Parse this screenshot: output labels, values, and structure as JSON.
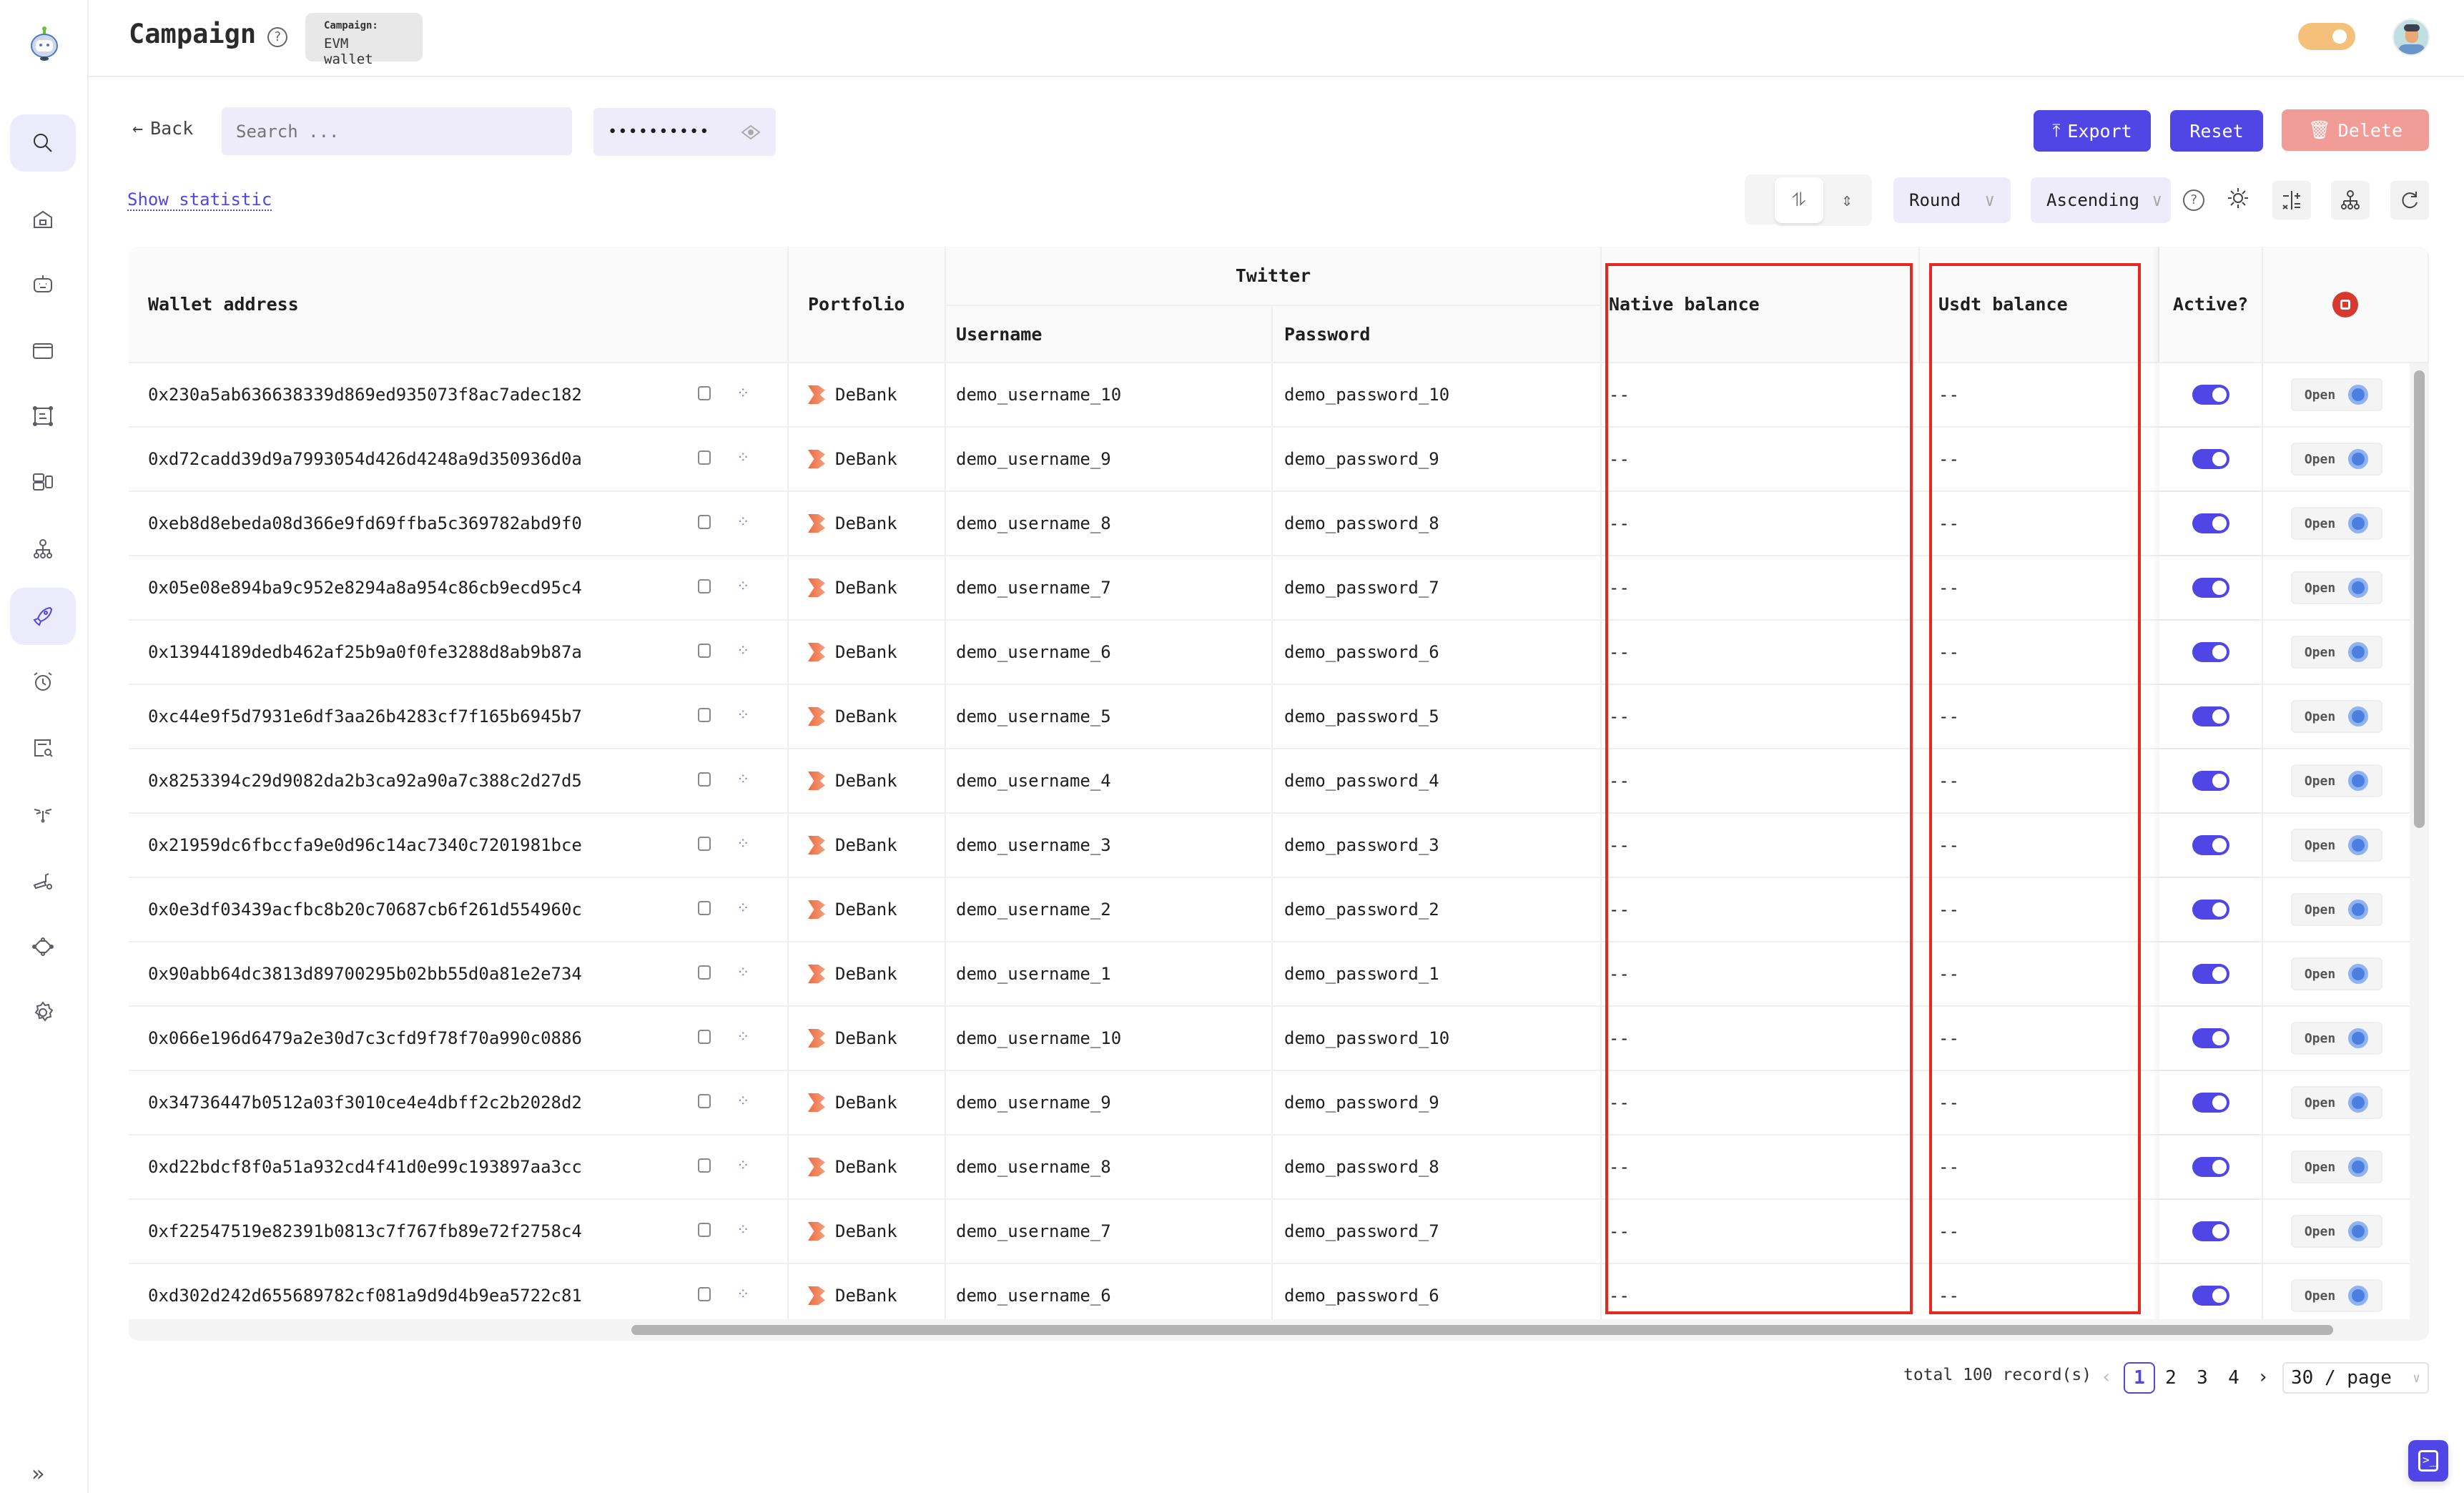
{
  "header": {
    "title": "Campaign",
    "badge_label": "Campaign:",
    "badge_value": "EVM wallet"
  },
  "toolbar": {
    "back_label": "Back",
    "search_placeholder": "Search ...",
    "password_value": "••••••••••",
    "export_label": "Export",
    "reset_label": "Reset",
    "delete_label": "Delete",
    "show_statistic": "Show statistic",
    "round_select": "Round",
    "order_select": "Ascending"
  },
  "colors": {
    "primary": "#4f46e5",
    "danger_disabled": "#f29c98",
    "highlight": "#e8281e",
    "theme_toggle": "#f5c07a"
  },
  "sidebar": {
    "items": [
      "search-icon",
      "home-icon",
      "robot-icon",
      "wallet-icon",
      "scan-icon",
      "layout-icon",
      "network-icon",
      "rocket-icon",
      "alarm-icon",
      "search-doc-icon",
      "signal-icon",
      "tool-icon",
      "nodes-icon",
      "gear-icon"
    ],
    "active": "rocket-icon"
  },
  "table": {
    "headers": {
      "wallet": "Wallet address",
      "portfolio": "Portfolio",
      "twitter": "Twitter",
      "username": "Username",
      "password": "Password",
      "native": "Native balance",
      "usdt": "Usdt balance",
      "active": "Active?"
    },
    "open_label": "Open",
    "rows": [
      {
        "address": "0x230a5ab636638339d869ed935073f8ac7adec182",
        "portfolio": "DeBank",
        "username": "demo_username_10",
        "password": "demo_password_10",
        "native": "--",
        "usdt": "--",
        "active": true
      },
      {
        "address": "0xd72cadd39d9a7993054d426d4248a9d350936d0a",
        "portfolio": "DeBank",
        "username": "demo_username_9",
        "password": "demo_password_9",
        "native": "--",
        "usdt": "--",
        "active": true
      },
      {
        "address": "0xeb8d8ebeda08d366e9fd69ffba5c369782abd9f0",
        "portfolio": "DeBank",
        "username": "demo_username_8",
        "password": "demo_password_8",
        "native": "--",
        "usdt": "--",
        "active": true
      },
      {
        "address": "0x05e08e894ba9c952e8294a8a954c86cb9ecd95c4",
        "portfolio": "DeBank",
        "username": "demo_username_7",
        "password": "demo_password_7",
        "native": "--",
        "usdt": "--",
        "active": true
      },
      {
        "address": "0x13944189dedb462af25b9a0f0fe3288d8ab9b87a",
        "portfolio": "DeBank",
        "username": "demo_username_6",
        "password": "demo_password_6",
        "native": "--",
        "usdt": "--",
        "active": true
      },
      {
        "address": "0xc44e9f5d7931e6df3aa26b4283cf7f165b6945b7",
        "portfolio": "DeBank",
        "username": "demo_username_5",
        "password": "demo_password_5",
        "native": "--",
        "usdt": "--",
        "active": true
      },
      {
        "address": "0x8253394c29d9082da2b3ca92a90a7c388c2d27d5",
        "portfolio": "DeBank",
        "username": "demo_username_4",
        "password": "demo_password_4",
        "native": "--",
        "usdt": "--",
        "active": true
      },
      {
        "address": "0x21959dc6fbccfa9e0d96c14ac7340c7201981bce",
        "portfolio": "DeBank",
        "username": "demo_username_3",
        "password": "demo_password_3",
        "native": "--",
        "usdt": "--",
        "active": true
      },
      {
        "address": "0x0e3df03439acfbc8b20c70687cb6f261d554960c",
        "portfolio": "DeBank",
        "username": "demo_username_2",
        "password": "demo_password_2",
        "native": "--",
        "usdt": "--",
        "active": true
      },
      {
        "address": "0x90abb64dc3813d89700295b02bb55d0a81e2e734",
        "portfolio": "DeBank",
        "username": "demo_username_1",
        "password": "demo_password_1",
        "native": "--",
        "usdt": "--",
        "active": true
      },
      {
        "address": "0x066e196d6479a2e30d7c3cfd9f78f70a990c0886",
        "portfolio": "DeBank",
        "username": "demo_username_10",
        "password": "demo_password_10",
        "native": "--",
        "usdt": "--",
        "active": true
      },
      {
        "address": "0x34736447b0512a03f3010ce4e4dbff2c2b2028d2",
        "portfolio": "DeBank",
        "username": "demo_username_9",
        "password": "demo_password_9",
        "native": "--",
        "usdt": "--",
        "active": true
      },
      {
        "address": "0xd22bdcf8f0a51a932cd4f41d0e99c193897aa3cc",
        "portfolio": "DeBank",
        "username": "demo_username_8",
        "password": "demo_password_8",
        "native": "--",
        "usdt": "--",
        "active": true
      },
      {
        "address": "0xf22547519e82391b0813c7f767fb89e72f2758c4",
        "portfolio": "DeBank",
        "username": "demo_username_7",
        "password": "demo_password_7",
        "native": "--",
        "usdt": "--",
        "active": true
      },
      {
        "address": "0xd302d242d655689782cf081a9d9d4b9ea5722c81",
        "portfolio": "DeBank",
        "username": "demo_username_6",
        "password": "demo_password_6",
        "native": "--",
        "usdt": "--",
        "active": true
      }
    ]
  },
  "pagination": {
    "total": "total 100 record(s)",
    "pages": [
      "1",
      "2",
      "3",
      "4"
    ],
    "current": "1",
    "page_size": "30 / page"
  }
}
